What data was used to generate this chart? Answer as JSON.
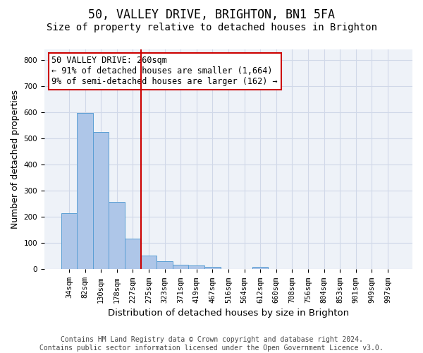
{
  "title1": "50, VALLEY DRIVE, BRIGHTON, BN1 5FA",
  "title2": "Size of property relative to detached houses in Brighton",
  "xlabel": "Distribution of detached houses by size in Brighton",
  "ylabel": "Number of detached properties",
  "bar_values": [
    215,
    598,
    525,
    257,
    117,
    52,
    31,
    18,
    14,
    10,
    0,
    0,
    8,
    0,
    0,
    0,
    0,
    0,
    0,
    0,
    0
  ],
  "bar_labels": [
    "34sqm",
    "82sqm",
    "130sqm",
    "178sqm",
    "227sqm",
    "275sqm",
    "323sqm",
    "371sqm",
    "419sqm",
    "467sqm",
    "516sqm",
    "564sqm",
    "612sqm",
    "660sqm",
    "708sqm",
    "756sqm",
    "804sqm",
    "853sqm",
    "901sqm",
    "949sqm",
    "997sqm"
  ],
  "bar_color": "#aec6e8",
  "bar_edge_color": "#5a9fd4",
  "vline_x": 4.5,
  "vline_color": "#cc0000",
  "annotation_text": "50 VALLEY DRIVE: 260sqm\n← 91% of detached houses are smaller (1,664)\n9% of semi-detached houses are larger (162) →",
  "annotation_box_color": "#cc0000",
  "ylim": [
    0,
    840
  ],
  "yticks": [
    0,
    100,
    200,
    300,
    400,
    500,
    600,
    700,
    800
  ],
  "grid_color": "#d0d8e8",
  "bg_color": "#eef2f8",
  "footer": "Contains HM Land Registry data © Crown copyright and database right 2024.\nContains public sector information licensed under the Open Government Licence v3.0.",
  "title1_fontsize": 12,
  "title2_fontsize": 10,
  "xlabel_fontsize": 9.5,
  "ylabel_fontsize": 9,
  "tick_fontsize": 7.5,
  "annotation_fontsize": 8.5,
  "footer_fontsize": 7
}
